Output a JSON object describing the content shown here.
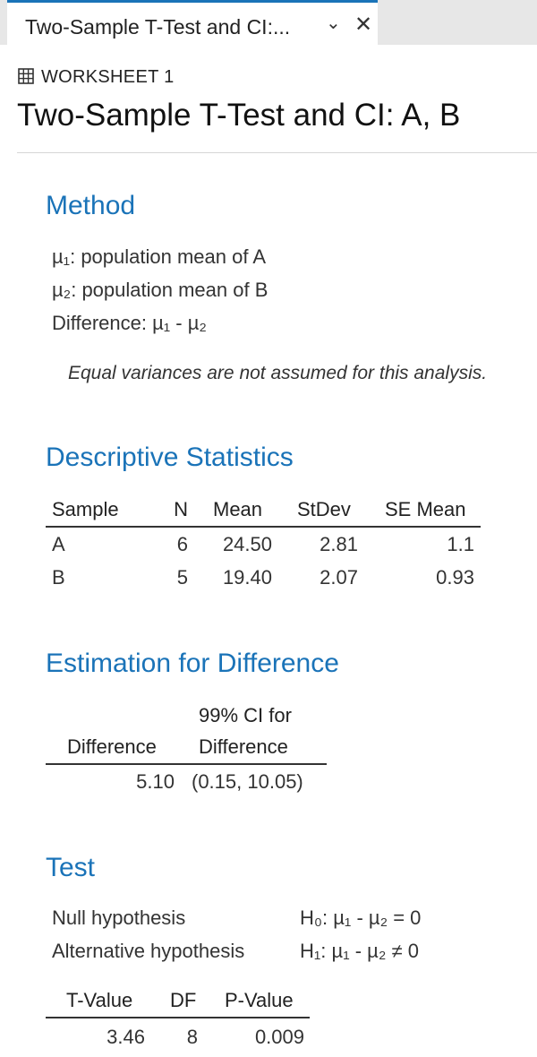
{
  "tab": {
    "title": "Two-Sample T-Test and CI:...",
    "chevron": "⌄",
    "close": "✕"
  },
  "worksheet": {
    "label": "WORKSHEET 1"
  },
  "page_title": "Two-Sample T-Test and CI: A, B",
  "method": {
    "heading": "Method",
    "lines": [
      "µ₁: population mean of A",
      "µ₂: population mean of B",
      "Difference: µ₁ - µ₂"
    ],
    "note": "Equal variances are not assumed for this analysis."
  },
  "descriptive": {
    "heading": "Descriptive Statistics",
    "columns": [
      "Sample",
      "N",
      "Mean",
      "StDev",
      "SE Mean"
    ],
    "rows": [
      [
        "A",
        "6",
        "24.50",
        "2.81",
        "1.1"
      ],
      [
        "B",
        "5",
        "19.40",
        "2.07",
        "0.93"
      ]
    ]
  },
  "estimation": {
    "heading": "Estimation for Difference",
    "col1": "Difference",
    "col2_line1": "99% CI for",
    "col2_line2": "Difference",
    "difference": "5.10",
    "ci": "(0.15, 10.05)"
  },
  "test": {
    "heading": "Test",
    "null_label": "Null hypothesis",
    "null_value": "H₀: µ₁ - µ₂ = 0",
    "alt_label": "Alternative hypothesis",
    "alt_value": "H₁: µ₁ - µ₂ ≠ 0",
    "columns": [
      "T-Value",
      "DF",
      "P-Value"
    ],
    "values": [
      "3.46",
      "8",
      "0.009"
    ]
  }
}
